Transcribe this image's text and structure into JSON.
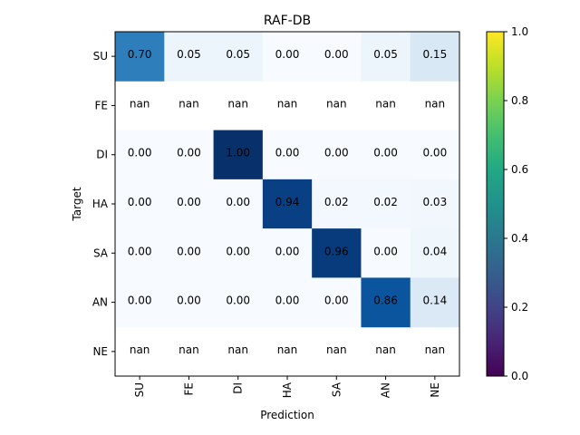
{
  "chart_data": {
    "type": "heatmap",
    "title": "RAF-DB",
    "xlabel": "Prediction",
    "ylabel": "Target",
    "x_categories": [
      "SU",
      "FE",
      "DI",
      "HA",
      "SA",
      "AN",
      "NE"
    ],
    "y_categories": [
      "SU",
      "FE",
      "DI",
      "HA",
      "SA",
      "AN",
      "NE"
    ],
    "values": [
      [
        0.7,
        0.05,
        0.05,
        0.0,
        0.0,
        0.05,
        0.15
      ],
      [
        null,
        null,
        null,
        null,
        null,
        null,
        null
      ],
      [
        0.0,
        0.0,
        1.0,
        0.0,
        0.0,
        0.0,
        0.0
      ],
      [
        0.0,
        0.0,
        0.0,
        0.94,
        0.02,
        0.02,
        0.03
      ],
      [
        0.0,
        0.0,
        0.0,
        0.0,
        0.96,
        0.0,
        0.04
      ],
      [
        0.0,
        0.0,
        0.0,
        0.0,
        0.0,
        0.86,
        0.14
      ],
      [
        null,
        null,
        null,
        null,
        null,
        null,
        null
      ]
    ],
    "labels": [
      [
        "0.70",
        "0.05",
        "0.05",
        "0.00",
        "0.00",
        "0.05",
        "0.15"
      ],
      [
        "nan",
        "nan",
        "nan",
        "nan",
        "nan",
        "nan",
        "nan"
      ],
      [
        "0.00",
        "0.00",
        "1.00",
        "0.00",
        "0.00",
        "0.00",
        "0.00"
      ],
      [
        "0.00",
        "0.00",
        "0.00",
        "0.94",
        "0.02",
        "0.02",
        "0.03"
      ],
      [
        "0.00",
        "0.00",
        "0.00",
        "0.00",
        "0.96",
        "0.00",
        "0.04"
      ],
      [
        "0.00",
        "0.00",
        "0.00",
        "0.00",
        "0.00",
        "0.86",
        "0.14"
      ],
      [
        "nan",
        "nan",
        "nan",
        "nan",
        "nan",
        "nan",
        "nan"
      ]
    ],
    "colormap": "Blues",
    "colorbar": {
      "colormap": "viridis",
      "range": [
        0,
        1
      ],
      "ticks": [
        "0.0",
        "0.2",
        "0.4",
        "0.6",
        "0.8",
        "1.0"
      ]
    }
  }
}
